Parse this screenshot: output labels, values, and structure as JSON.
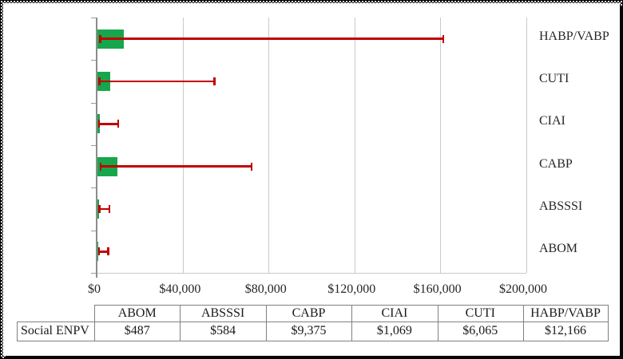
{
  "chart_data": {
    "type": "bar",
    "orientation": "horizontal",
    "title": "",
    "categories_top_to_bottom": [
      "HABP/VABP",
      "CUTI",
      "CIAI",
      "CABP",
      "ABSSSI",
      "ABOM"
    ],
    "series": [
      {
        "name": "Social ENPV",
        "values": [
          12166,
          6065,
          1069,
          9375,
          584,
          487
        ]
      }
    ],
    "error_bars_approx": {
      "low": [
        900,
        550,
        300,
        1000,
        400,
        350
      ],
      "high": [
        161700,
        55000,
        10100,
        72400,
        6000,
        5500
      ]
    },
    "x_axis": {
      "tick_labels": [
        "$0",
        "$40,000",
        "$80,000",
        "$120,000",
        "$160,000",
        "$200,000"
      ],
      "tick_values": [
        0,
        40000,
        80000,
        120000,
        160000,
        200000
      ],
      "min": 0,
      "max": 200000
    },
    "grid": "vertical-gridlines-on",
    "legend": "none",
    "colors": {
      "bar": "#16a74c",
      "error_bar": "#c00000",
      "gridline": "#c9c9c9",
      "axis": "#8c8c8c",
      "text": "#262626",
      "table_border": "#808080"
    }
  },
  "table": {
    "row_header": "Social ENPV",
    "columns": [
      "ABOM",
      "ABSSSI",
      "CABP",
      "CIAI",
      "CUTI",
      "HABP/VABP"
    ],
    "rows": [
      {
        "label": "Social ENPV",
        "values": [
          "$487",
          "$584",
          "$9,375",
          "$1,069",
          "$6,065",
          "$12,166"
        ]
      }
    ]
  }
}
